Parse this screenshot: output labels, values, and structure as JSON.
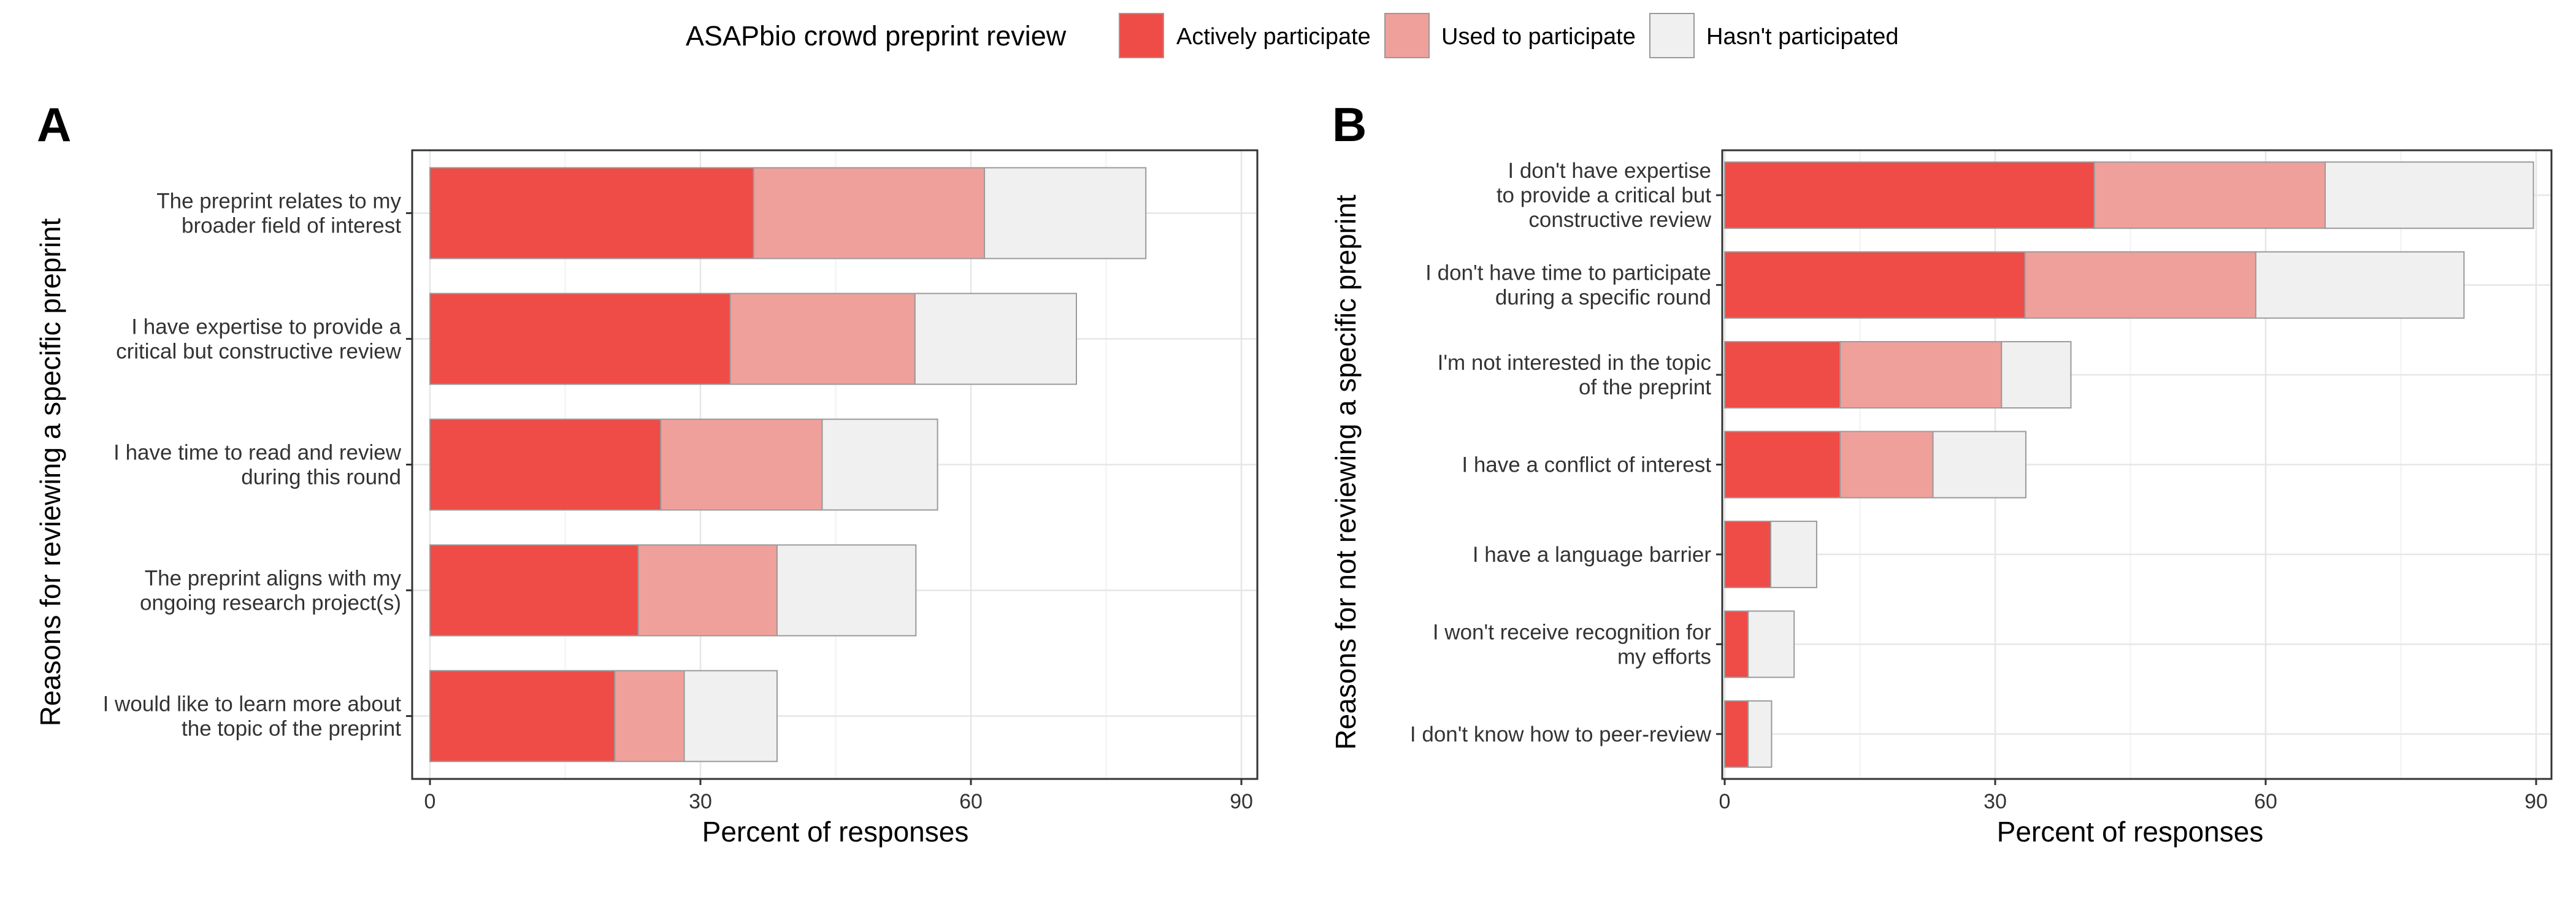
{
  "legend": {
    "title": "ASAPbio crowd preprint review",
    "entries": [
      {
        "key": "active",
        "label": "Actively participate",
        "color": "#EF4B47"
      },
      {
        "key": "used",
        "label": "Used to participate",
        "color": "#F0A09B"
      },
      {
        "key": "never",
        "label": "Hasn't participated",
        "color": "#F0F0F0"
      }
    ]
  },
  "chart_data": [
    {
      "panel": "A",
      "type": "bar",
      "orientation": "horizontal",
      "stacked": true,
      "xlabel": "Percent of responses",
      "ylabel": "Reasons for reviewing a specific preprint",
      "xlim": [
        0,
        90
      ],
      "xticks": [
        0,
        30,
        60,
        90
      ],
      "grid": true,
      "legend_position": "top",
      "categories": [
        [
          "The preprint relates to my",
          "broader field of interest"
        ],
        [
          "I have expertise to provide a",
          "critical but constructive review"
        ],
        [
          "I have time to read and review",
          "during this round"
        ],
        [
          "The preprint aligns with my",
          "ongoing research project(s)"
        ],
        [
          "I would like to learn more about",
          "the topic of the preprint"
        ]
      ],
      "series": [
        {
          "name": "Actively participate",
          "values": [
            35.9,
            33.3,
            25.6,
            23.1,
            20.5
          ]
        },
        {
          "name": "Used to participate",
          "values": [
            25.6,
            20.5,
            17.9,
            15.4,
            7.7
          ]
        },
        {
          "name": "Hasn't participated",
          "values": [
            17.9,
            17.9,
            12.8,
            15.4,
            10.3
          ]
        }
      ]
    },
    {
      "panel": "B",
      "type": "bar",
      "orientation": "horizontal",
      "stacked": true,
      "xlabel": "Percent of responses",
      "ylabel": "Reasons for not reviewing a specific preprint",
      "xlim": [
        0,
        90
      ],
      "xticks": [
        0,
        30,
        60,
        90
      ],
      "grid": true,
      "legend_position": "top",
      "categories": [
        [
          "I don't have expertise",
          "to provide a critical but",
          "constructive review"
        ],
        [
          "I don't have time to participate",
          "during a specific round"
        ],
        [
          "I'm not interested in the topic",
          "of the preprint"
        ],
        [
          "I have a conflict of interest"
        ],
        [
          "I have a language barrier"
        ],
        [
          "I won't receive recognition for",
          "my efforts"
        ],
        [
          "I don't know how to peer-review"
        ]
      ],
      "series": [
        {
          "name": "Actively participate",
          "values": [
            41.0,
            33.3,
            12.8,
            12.8,
            5.1,
            2.6,
            2.6
          ]
        },
        {
          "name": "Used to participate",
          "values": [
            25.6,
            25.6,
            17.9,
            10.3,
            0,
            0,
            0
          ]
        },
        {
          "name": "Hasn't participated",
          "values": [
            23.1,
            23.1,
            7.7,
            10.3,
            5.1,
            5.1,
            2.6
          ]
        }
      ]
    }
  ]
}
